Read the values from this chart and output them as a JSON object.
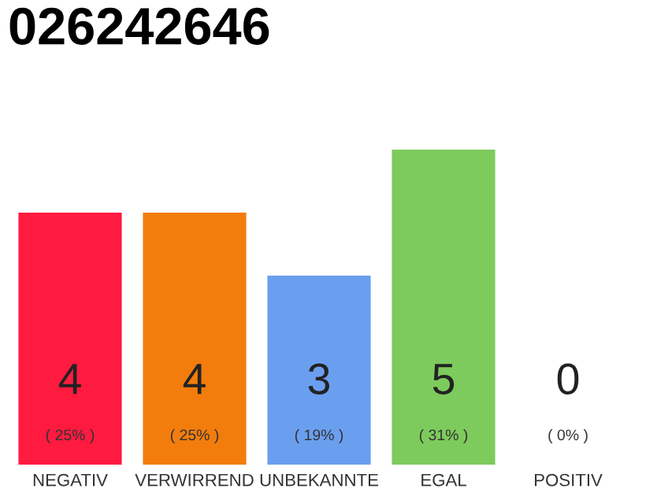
{
  "chart_data": {
    "type": "bar",
    "title": "026242646",
    "categories": [
      "NEGATIV",
      "VERWIRREND",
      "UNBEKANNTE",
      "EGAL",
      "POSITIV"
    ],
    "values": [
      4,
      4,
      3,
      5,
      0
    ],
    "colors": [
      "#ff1a40",
      "#f27d0c",
      "#6a9fef",
      "#7dcb5c",
      "#cccccc"
    ],
    "value_labels": [
      "4\n( 25% )",
      "4\n( 25% )",
      "3\n( 19% )",
      "5\n( 31% )",
      "0\n( 0% )"
    ],
    "grid": false,
    "legend": false
  }
}
